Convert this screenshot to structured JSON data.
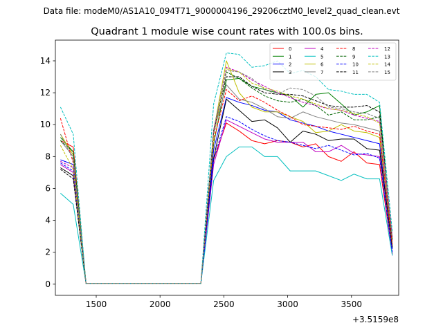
{
  "chart_data": {
    "type": "line",
    "suptitle": "Data file: modeM0/AS1A10_094T71_9000004196_29206cztM0_level2_quad_clean.evt",
    "title": "Quadrant 1 module wise count rates with 100.0s bins.",
    "xlabel": "",
    "ylabel": "",
    "x_offset_label": "+3.5159e8",
    "xlim": [
      1180,
      3870
    ],
    "ylim": [
      -0.7,
      15.3
    ],
    "xticks": [
      1500,
      2000,
      2500,
      3000,
      3500
    ],
    "yticks": [
      0,
      2,
      4,
      6,
      8,
      10,
      12,
      14
    ],
    "grid": false,
    "legend_position": "top-right",
    "x": [
      1220,
      1320,
      1420,
      1520,
      1620,
      1720,
      1820,
      1920,
      2020,
      2120,
      2220,
      2320,
      2420,
      2520,
      2620,
      2720,
      2820,
      2920,
      3020,
      3120,
      3220,
      3320,
      3420,
      3520,
      3620,
      3720,
      3820
    ],
    "series": [
      {
        "name": "0",
        "color": "#ff0000",
        "dash": "solid",
        "values": [
          9.0,
          8.6,
          0.05,
          0.05,
          0.05,
          0.05,
          0.05,
          0.05,
          0.05,
          0.05,
          0.05,
          0.05,
          7.8,
          10.1,
          9.6,
          9.0,
          8.8,
          9.0,
          8.9,
          8.6,
          8.8,
          8.0,
          7.7,
          8.3,
          7.6,
          7.5,
          1.9
        ]
      },
      {
        "name": "1",
        "color": "#008000",
        "dash": "solid",
        "values": [
          9.2,
          8.3,
          0.05,
          0.05,
          0.05,
          0.05,
          0.05,
          0.05,
          0.05,
          0.05,
          0.05,
          0.05,
          8.8,
          12.8,
          12.9,
          12.4,
          12.2,
          12.0,
          11.8,
          11.1,
          11.9,
          12.0,
          11.3,
          10.6,
          10.8,
          11.2,
          2.3
        ]
      },
      {
        "name": "2",
        "color": "#0000ff",
        "dash": "solid",
        "values": [
          7.8,
          7.5,
          0.05,
          0.05,
          0.05,
          0.05,
          0.05,
          0.05,
          0.05,
          0.05,
          0.05,
          0.05,
          8.4,
          11.7,
          11.4,
          11.2,
          10.9,
          10.8,
          10.3,
          10.1,
          9.9,
          9.6,
          9.4,
          9.2,
          9.0,
          8.8,
          2.2
        ]
      },
      {
        "name": "3",
        "color": "#000000",
        "dash": "solid",
        "values": [
          7.3,
          6.8,
          0.05,
          0.05,
          0.05,
          0.05,
          0.05,
          0.05,
          0.05,
          0.05,
          0.05,
          0.05,
          7.9,
          11.6,
          10.9,
          10.2,
          10.3,
          9.8,
          8.9,
          9.6,
          9.4,
          9.0,
          9.1,
          9.1,
          8.5,
          8.4,
          2.3
        ]
      },
      {
        "name": "4",
        "color": "#bf00bf",
        "dash": "solid",
        "values": [
          7.5,
          7.0,
          0.05,
          0.05,
          0.05,
          0.05,
          0.05,
          0.05,
          0.05,
          0.05,
          0.05,
          0.05,
          7.5,
          10.3,
          9.9,
          9.5,
          9.1,
          8.9,
          8.9,
          8.9,
          8.3,
          8.3,
          8.7,
          8.2,
          8.1,
          8.0,
          1.8
        ]
      },
      {
        "name": "5",
        "color": "#00bfbf",
        "dash": "solid",
        "values": [
          5.7,
          5.0,
          0.05,
          0.05,
          0.05,
          0.05,
          0.05,
          0.05,
          0.05,
          0.05,
          0.05,
          0.05,
          6.5,
          8.0,
          8.6,
          8.6,
          8.0,
          8.0,
          7.1,
          7.1,
          7.1,
          6.8,
          6.5,
          6.9,
          6.6,
          6.6,
          1.8
        ]
      },
      {
        "name": "6",
        "color": "#bfbf00",
        "dash": "solid",
        "values": [
          9.4,
          8.1,
          0.05,
          0.05,
          0.05,
          0.05,
          0.05,
          0.05,
          0.05,
          0.05,
          0.05,
          0.05,
          9.6,
          14.0,
          12.0,
          11.1,
          10.8,
          10.8,
          10.5,
          10.2,
          9.5,
          9.6,
          10.0,
          9.6,
          9.5,
          9.2,
          2.5
        ]
      },
      {
        "name": "7",
        "color": "#808080",
        "dash": "solid",
        "values": [
          9.0,
          8.0,
          0.05,
          0.05,
          0.05,
          0.05,
          0.05,
          0.05,
          0.05,
          0.05,
          0.05,
          0.05,
          9.5,
          12.5,
          11.6,
          11.4,
          11.0,
          10.5,
          10.4,
          10.8,
          10.5,
          10.3,
          10.1,
          10.0,
          9.8,
          9.6,
          2.6
        ]
      },
      {
        "name": "8",
        "color": "#ff0000",
        "dash": "dashed",
        "values": [
          10.4,
          7.6,
          0.05,
          0.05,
          0.05,
          0.05,
          0.05,
          0.05,
          0.05,
          0.05,
          0.05,
          0.05,
          9.0,
          12.2,
          11.5,
          11.8,
          11.4,
          10.9,
          10.5,
          10.0,
          9.9,
          9.8,
          9.7,
          9.9,
          9.6,
          9.4,
          2.5
        ]
      },
      {
        "name": "9",
        "color": "#006400",
        "dash": "dashed",
        "values": [
          9.0,
          8.3,
          0.05,
          0.05,
          0.05,
          0.05,
          0.05,
          0.05,
          0.05,
          0.05,
          0.05,
          0.05,
          9.6,
          13.3,
          12.9,
          12.3,
          11.8,
          11.5,
          11.4,
          11.6,
          11.2,
          10.6,
          10.8,
          10.3,
          10.3,
          10.5,
          2.8
        ]
      },
      {
        "name": "10",
        "color": "#0000ff",
        "dash": "dashed",
        "values": [
          7.6,
          7.1,
          0.05,
          0.05,
          0.05,
          0.05,
          0.05,
          0.05,
          0.05,
          0.05,
          0.05,
          0.05,
          7.8,
          10.5,
          10.2,
          9.7,
          9.3,
          9.0,
          8.9,
          8.7,
          8.5,
          8.7,
          8.4,
          8.1,
          8.2,
          7.9,
          2.0
        ]
      },
      {
        "name": "11",
        "color": "#000000",
        "dash": "dashed",
        "values": [
          7.2,
          6.6,
          0.05,
          0.05,
          0.05,
          0.05,
          0.05,
          0.05,
          0.05,
          0.05,
          0.05,
          0.05,
          9.6,
          13.0,
          13.0,
          12.4,
          12.0,
          11.9,
          11.9,
          11.8,
          11.5,
          11.2,
          11.1,
          11.1,
          11.2,
          10.8,
          2.8
        ]
      },
      {
        "name": "12",
        "color": "#bf00bf",
        "dash": "dashed",
        "values": [
          7.7,
          7.3,
          0.05,
          0.05,
          0.05,
          0.05,
          0.05,
          0.05,
          0.05,
          0.05,
          0.05,
          0.05,
          9.5,
          13.6,
          13.3,
          12.8,
          12.4,
          12.0,
          11.7,
          11.4,
          11.2,
          11.0,
          10.9,
          10.6,
          10.4,
          10.2,
          3.0
        ]
      },
      {
        "name": "13",
        "color": "#00bfbf",
        "dash": "dashed",
        "values": [
          11.1,
          9.4,
          0.05,
          0.05,
          0.05,
          0.05,
          0.05,
          0.05,
          0.05,
          0.05,
          0.05,
          0.05,
          11.3,
          14.5,
          14.4,
          13.6,
          13.7,
          14.0,
          13.2,
          13.4,
          13.0,
          12.2,
          12.1,
          11.9,
          11.9,
          11.4,
          3.3
        ]
      },
      {
        "name": "14",
        "color": "#bfbf00",
        "dash": "dashed",
        "values": [
          8.7,
          7.2,
          0.05,
          0.05,
          0.05,
          0.05,
          0.05,
          0.05,
          0.05,
          0.05,
          0.05,
          0.05,
          9.2,
          13.5,
          13.3,
          12.6,
          12.3,
          12.1,
          11.8,
          11.6,
          11.3,
          11.0,
          10.9,
          10.7,
          10.5,
          10.1,
          2.9
        ]
      },
      {
        "name": "15",
        "color": "#808080",
        "dash": "dashed",
        "values": [
          9.4,
          7.8,
          0.05,
          0.05,
          0.05,
          0.05,
          0.05,
          0.05,
          0.05,
          0.05,
          0.05,
          0.05,
          9.7,
          13.4,
          13.3,
          12.9,
          12.2,
          11.9,
          12.3,
          12.2,
          11.8,
          11.1,
          11.0,
          10.8,
          10.7,
          10.4,
          2.9
        ]
      }
    ]
  }
}
